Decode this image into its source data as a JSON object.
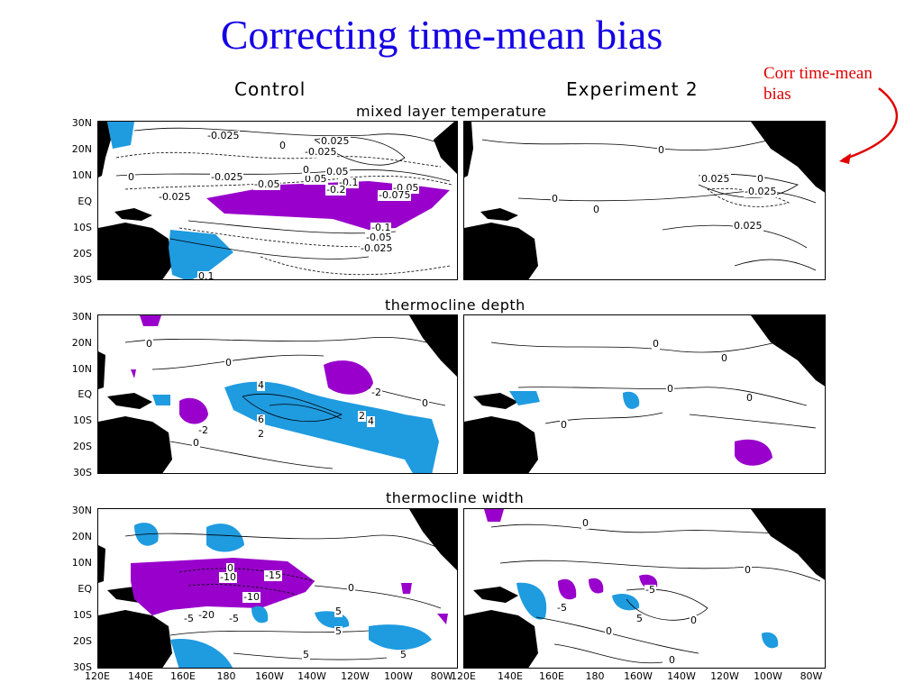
{
  "slide": {
    "title": "Correcting time-mean bias",
    "annotation": [
      "Corr time-mean",
      "bias"
    ]
  },
  "figure": {
    "col_titles": [
      "Control",
      "Experiment 2"
    ],
    "rows": [
      {
        "title": "mixed layer temperature"
      },
      {
        "title": "thermocline depth"
      },
      {
        "title": "thermocline width"
      }
    ],
    "lat_labels": [
      "30N",
      "20N",
      "10N",
      "EQ",
      "10S",
      "20S",
      "30S"
    ],
    "lon_labels": [
      "120E",
      "140E",
      "160E",
      "180",
      "160W",
      "140W",
      "120W",
      "100W",
      "80W"
    ],
    "colors": {
      "positive": "#1f9be0",
      "negative": "#9900cc",
      "land": "#000000",
      "title": "#1400e6",
      "annotation": "#e00000"
    }
  },
  "contour_labels": {
    "r0c0": [
      "-0.025",
      "0",
      "0.025",
      "0",
      "0.05",
      "-0.025",
      "0.05",
      "0",
      "-0.05",
      "-0.025",
      "-0.1",
      "-0.2",
      "-0.05",
      "-0.075",
      "-0.025",
      "-0.1",
      "-0.05",
      "-0.025",
      "0.1"
    ],
    "r0c1": [
      "0",
      "0.025",
      "0",
      "-0.025",
      "0",
      "0",
      "0.025"
    ],
    "r1c0": [
      "0",
      "0",
      "4",
      "-2",
      "6",
      "2",
      "-2",
      "0",
      "2",
      "4",
      "0"
    ],
    "r1c1": [
      "0",
      "0",
      "0",
      "0",
      "0"
    ],
    "r2c0": [
      "0",
      "-15",
      "-10",
      "-10",
      "-5",
      "5",
      "-20",
      "0",
      "5",
      "5",
      "-5",
      "5"
    ],
    "r2c1": [
      "0",
      "0",
      "-5",
      "-5",
      "5",
      "0",
      "0",
      "0"
    ]
  }
}
